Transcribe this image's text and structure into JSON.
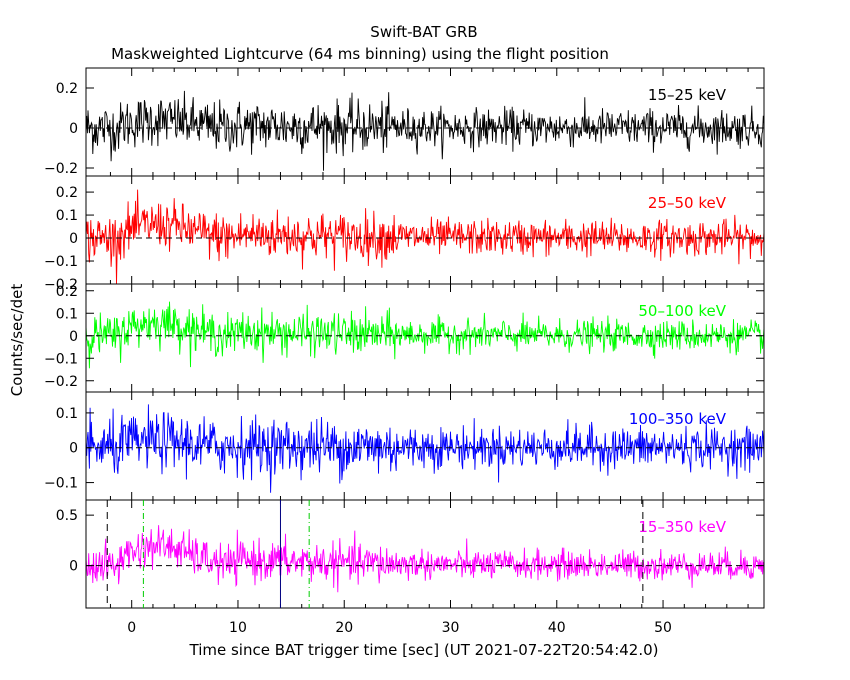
{
  "chart_data": {
    "type": "line",
    "title": "Swift-BAT GRB",
    "subtitle": "Maskweighted Lightcurve (64 ms binning) using the flight position",
    "xlabel": "Time since BAT trigger time [sec] (UT 2021-07-22T20:54:42.0)",
    "ylabel": "Counts/sec/det",
    "xlim": [
      -4.3,
      59.5
    ],
    "xticks": [
      "0",
      "10",
      "20",
      "30",
      "40",
      "50"
    ],
    "grid": false,
    "panels": [
      {
        "name": "15–25 keV",
        "color": "#000000",
        "ylim": [
          -0.24,
          0.3
        ],
        "yticks": [
          "−0.2",
          "0",
          "0.2"
        ],
        "noise": 0.055,
        "peak": 0.04
      },
      {
        "name": "25–50 keV",
        "color": "#ff0000",
        "ylim": [
          -0.2,
          0.27
        ],
        "yticks": [
          "−0.2",
          "−0.1",
          "0",
          "0.1",
          "0.2"
        ],
        "noise": 0.045,
        "peak": 0.06
      },
      {
        "name": "50–100 keV",
        "color": "#00ff00",
        "ylim": [
          -0.25,
          0.23
        ],
        "yticks": [
          "−0.2",
          "−0.1",
          "0",
          "0.1",
          "0.2"
        ],
        "noise": 0.04,
        "peak": 0.06
      },
      {
        "name": "100–350 keV",
        "color": "#0000ff",
        "ylim": [
          -0.15,
          0.16
        ],
        "yticks": [
          "−0.1",
          "0",
          "0.1"
        ],
        "noise": 0.035,
        "peak": 0.02
      },
      {
        "name": "15–350 keV",
        "color": "#ff00ff",
        "ylim": [
          -0.42,
          0.65
        ],
        "yticks": [
          "0",
          "0.5"
        ],
        "noise": 0.085,
        "peak": 0.2
      }
    ],
    "markers": [
      {
        "x": -2.3,
        "color": "#000000",
        "style": "dashed"
      },
      {
        "x": 1.1,
        "color": "#00cc00",
        "style": "dashdot"
      },
      {
        "x": 14.0,
        "color": "#000080",
        "style": "solid"
      },
      {
        "x": 16.7,
        "color": "#00cc00",
        "style": "dashdot"
      },
      {
        "x": 48.1,
        "color": "#000000",
        "style": "dashed"
      }
    ]
  }
}
